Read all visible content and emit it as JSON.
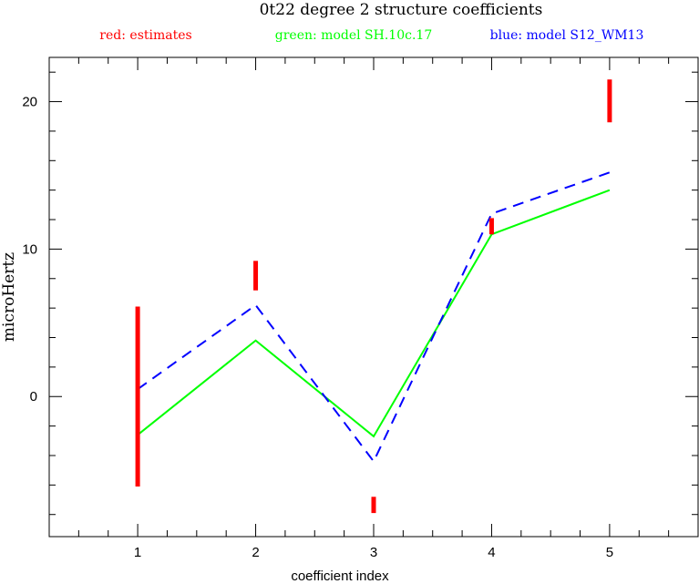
{
  "chart_data": {
    "type": "line",
    "title": "0t22 degree 2 structure coefficients",
    "xlabel": "coefficient index",
    "ylabel": "microHertz",
    "xlim": [
      0.25,
      5.75
    ],
    "ylim": [
      -9.5,
      23
    ],
    "x_ticks": [
      1,
      2,
      3,
      4,
      5
    ],
    "y_ticks": [
      0,
      10,
      20
    ],
    "x_minor_step": 0.25,
    "y_minor_step": 2,
    "legend": [
      {
        "label": "red: estimates",
        "color": "#ff0000"
      },
      {
        "label": "green: model SH.10c.17",
        "color": "#00ff00"
      },
      {
        "label": "blue: model S12_WM13",
        "color": "#0000ff"
      }
    ],
    "estimates": {
      "name": "estimates",
      "color": "#ff0000",
      "bars": [
        {
          "x": 1,
          "low": -6.1,
          "high": 6.1
        },
        {
          "x": 2,
          "low": 7.2,
          "high": 9.2
        },
        {
          "x": 3,
          "low": -7.9,
          "high": -6.8
        },
        {
          "x": 4,
          "low": 11.0,
          "high": 12.1
        },
        {
          "x": 5,
          "low": 18.6,
          "high": 21.5
        }
      ]
    },
    "series": [
      {
        "name": "model SH.10c.17",
        "color": "#00ff00",
        "style": "solid",
        "x": [
          1,
          2,
          3,
          4,
          5
        ],
        "values": [
          -2.6,
          3.8,
          -2.7,
          11.0,
          14.0
        ]
      },
      {
        "name": "model S12_WM13",
        "color": "#0000ff",
        "style": "dashed",
        "x": [
          1,
          2,
          3,
          4,
          5
        ],
        "values": [
          0.5,
          6.2,
          -4.4,
          12.4,
          15.2
        ]
      }
    ]
  }
}
